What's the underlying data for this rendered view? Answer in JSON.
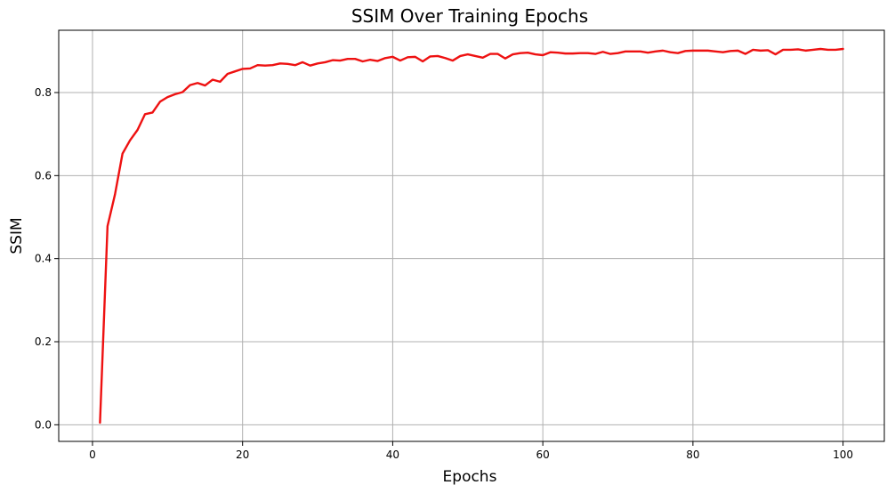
{
  "chart_data": {
    "type": "line",
    "title": "SSIM Over Training Epochs",
    "xlabel": "Epochs",
    "ylabel": "SSIM",
    "xlim": [
      -4.5,
      105.5
    ],
    "ylim": [
      -0.04,
      0.95
    ],
    "xticks": [
      0,
      20,
      40,
      60,
      80,
      100
    ],
    "yticks": [
      0.0,
      0.2,
      0.4,
      0.6,
      0.8
    ],
    "ytick_labels": [
      "0.0",
      "0.2",
      "0.4",
      "0.6",
      "0.8"
    ],
    "grid": true,
    "series": [
      {
        "name": "SSIM",
        "color": "#ee1111",
        "x": [
          1,
          2,
          3,
          4,
          5,
          6,
          7,
          8,
          9,
          10,
          11,
          12,
          13,
          14,
          15,
          16,
          17,
          18,
          19,
          20,
          21,
          22,
          23,
          24,
          25,
          26,
          27,
          28,
          29,
          30,
          31,
          32,
          33,
          34,
          35,
          36,
          37,
          38,
          39,
          40,
          41,
          42,
          43,
          44,
          45,
          46,
          47,
          48,
          49,
          50,
          51,
          52,
          53,
          54,
          55,
          56,
          57,
          58,
          59,
          60,
          61,
          62,
          63,
          64,
          65,
          66,
          67,
          68,
          69,
          70,
          71,
          72,
          73,
          74,
          75,
          76,
          77,
          78,
          79,
          80,
          81,
          82,
          83,
          84,
          85,
          86,
          87,
          88,
          89,
          90,
          91,
          92,
          93,
          94,
          95,
          96,
          97,
          98,
          99,
          100
        ],
        "values": [
          0.005,
          0.478,
          0.555,
          0.653,
          0.685,
          0.71,
          0.748,
          0.752,
          0.778,
          0.789,
          0.796,
          0.801,
          0.818,
          0.823,
          0.817,
          0.831,
          0.826,
          0.845,
          0.851,
          0.857,
          0.858,
          0.866,
          0.865,
          0.866,
          0.87,
          0.869,
          0.866,
          0.873,
          0.865,
          0.87,
          0.873,
          0.878,
          0.877,
          0.881,
          0.881,
          0.875,
          0.879,
          0.876,
          0.883,
          0.886,
          0.877,
          0.885,
          0.886,
          0.875,
          0.887,
          0.888,
          0.883,
          0.877,
          0.888,
          0.892,
          0.888,
          0.884,
          0.893,
          0.893,
          0.882,
          0.892,
          0.895,
          0.896,
          0.892,
          0.89,
          0.897,
          0.896,
          0.894,
          0.894,
          0.895,
          0.895,
          0.893,
          0.898,
          0.893,
          0.895,
          0.899,
          0.899,
          0.899,
          0.896,
          0.899,
          0.901,
          0.897,
          0.895,
          0.9,
          0.901,
          0.901,
          0.901,
          0.899,
          0.897,
          0.9,
          0.901,
          0.893,
          0.903,
          0.901,
          0.902,
          0.892,
          0.903,
          0.903,
          0.904,
          0.901,
          0.903,
          0.905,
          0.903,
          0.903,
          0.905
        ]
      }
    ]
  }
}
